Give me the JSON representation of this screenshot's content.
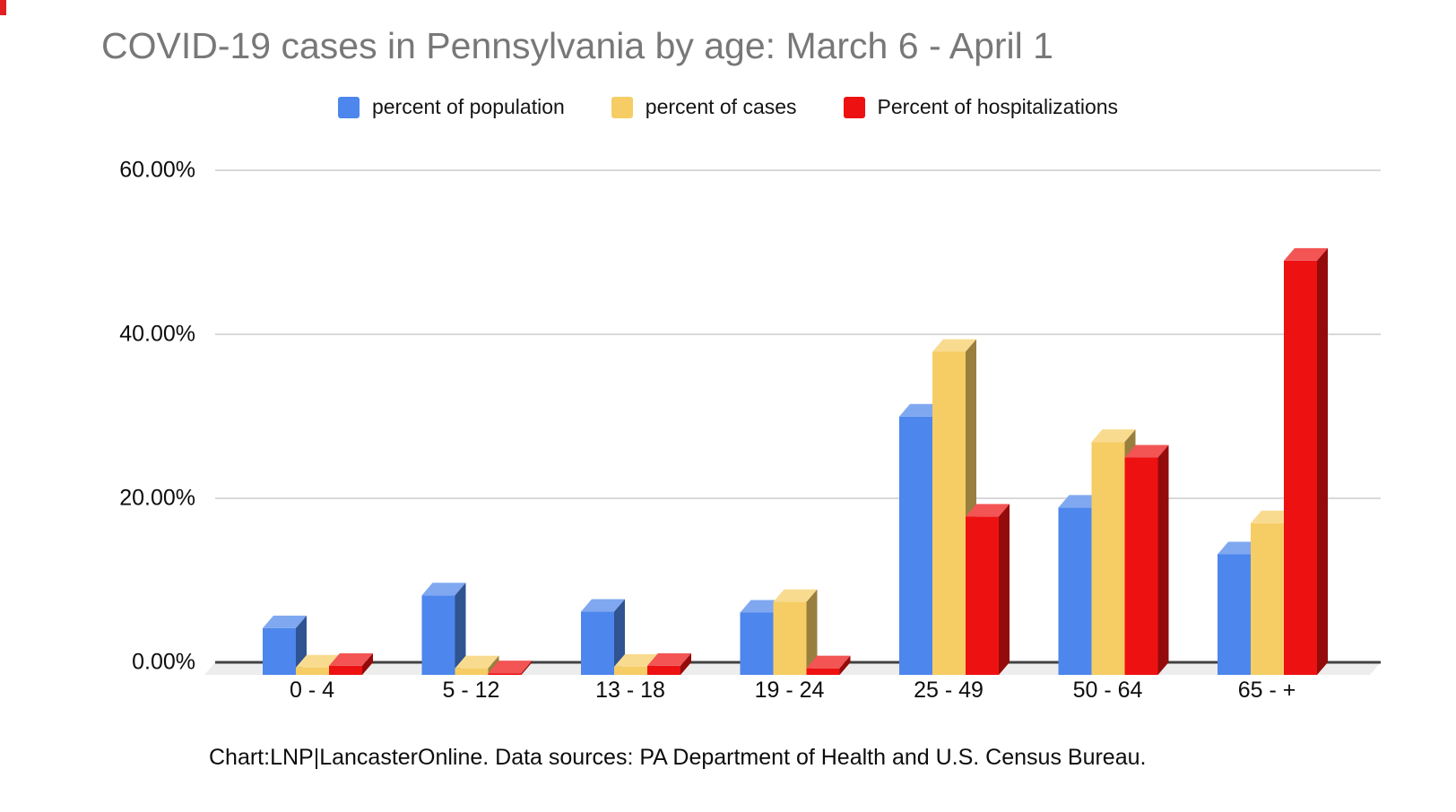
{
  "title": "COVID-19 cases in Pennsylvania by age: March 6 - April 1",
  "source_note": "Chart:LNP|LancasterOnline. Data sources: PA Department of Health and U.S. Census Bureau.",
  "colors": {
    "title_gray": "#787878",
    "gridline": "#d9d9d9",
    "axis_line": "#424242",
    "floor": "#ededed",
    "series_blue": "#4d86ec",
    "series_yellow": "#f6cd64",
    "series_red": "#ee1111"
  },
  "chart_data": {
    "type": "bar",
    "subtype": "3d-column",
    "title": "COVID-19 cases in Pennsylvania by age: March 6 - April 1",
    "categories": [
      "0 - 4",
      "5 - 12",
      "13 - 18",
      "19 - 24",
      "25 - 49",
      "50 - 64",
      "65 - +"
    ],
    "series": [
      {
        "name": "percent of population",
        "color": "#4d86ec",
        "values": [
          5.7,
          9.7,
          7.7,
          7.6,
          31.5,
          20.4,
          14.7
        ]
      },
      {
        "name": "percent of cases",
        "color": "#f6cd64",
        "values": [
          0.9,
          0.8,
          1.0,
          8.9,
          39.4,
          28.4,
          18.5
        ]
      },
      {
        "name": "Percent of hospitalizations",
        "color": "#ee1111",
        "values": [
          1.1,
          0.2,
          1.1,
          0.8,
          19.3,
          26.5,
          50.5
        ]
      }
    ],
    "y_ticks": [
      {
        "value": 0,
        "label": "0.00%"
      },
      {
        "value": 20,
        "label": "20.00%"
      },
      {
        "value": 40,
        "label": "40.00%"
      },
      {
        "value": 60,
        "label": "60.00%"
      }
    ],
    "ylim": [
      0,
      60
    ],
    "xlabel": "",
    "ylabel": "",
    "grid": true,
    "legend_position": "top"
  }
}
